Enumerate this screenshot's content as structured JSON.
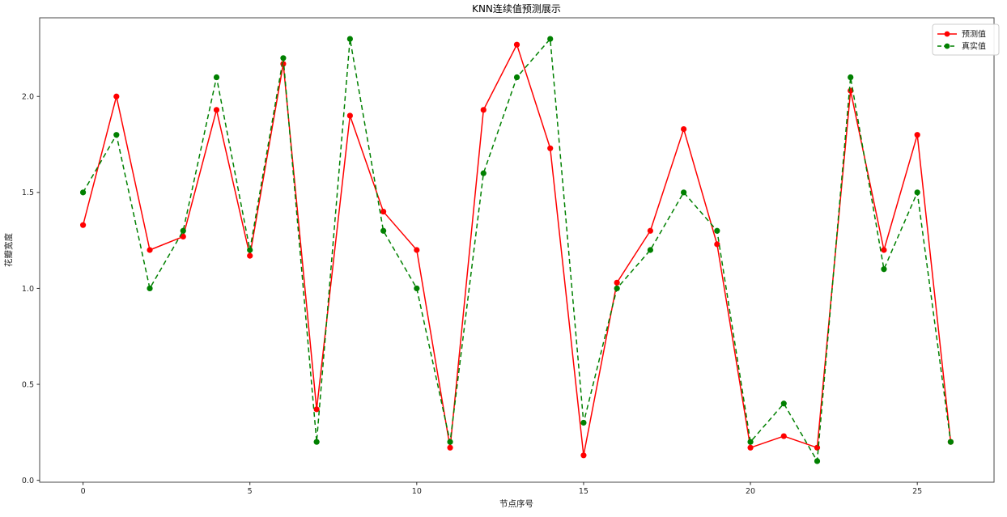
{
  "chart_data": {
    "type": "line",
    "title": "KNN连续值预测展示",
    "xlabel": "节点序号",
    "ylabel": "花瓣宽度",
    "x": [
      0,
      1,
      2,
      3,
      4,
      5,
      6,
      7,
      8,
      9,
      10,
      11,
      12,
      13,
      14,
      15,
      16,
      17,
      18,
      19,
      20,
      21,
      22,
      23,
      24,
      25,
      26
    ],
    "series": [
      {
        "name": "预测值",
        "color": "#ff0000",
        "linestyle": "solid",
        "marker": "circle",
        "values": [
          1.33,
          2.0,
          1.2,
          1.27,
          1.93,
          1.17,
          2.17,
          0.37,
          1.9,
          1.4,
          1.2,
          0.17,
          1.93,
          2.27,
          1.73,
          0.13,
          1.03,
          1.3,
          1.83,
          1.23,
          0.17,
          0.23,
          0.17,
          2.03,
          1.2,
          1.8,
          0.2
        ]
      },
      {
        "name": "真实值",
        "color": "#008000",
        "linestyle": "dashed",
        "marker": "circle",
        "values": [
          1.5,
          1.8,
          1.0,
          1.3,
          2.1,
          1.2,
          2.2,
          0.2,
          2.3,
          1.3,
          1.0,
          0.2,
          1.6,
          2.1,
          2.3,
          0.3,
          1.0,
          1.2,
          1.5,
          1.3,
          0.2,
          0.4,
          0.1,
          2.1,
          1.1,
          1.5,
          0.2
        ]
      }
    ],
    "x_ticks": [
      0,
      5,
      10,
      15,
      20,
      25
    ],
    "y_ticks": [
      0.0,
      0.5,
      1.0,
      1.5,
      2.0
    ],
    "xlim": [
      -1.3,
      27.3
    ],
    "ylim": [
      -0.01,
      2.41
    ],
    "grid": false,
    "legend_position": "upper right"
  }
}
